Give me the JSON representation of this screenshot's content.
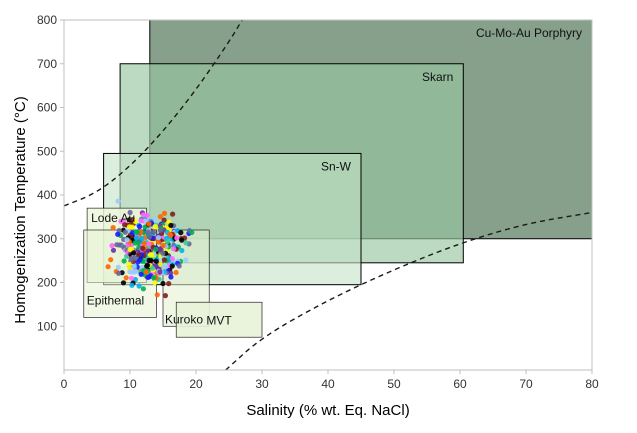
{
  "chart_data": {
    "type": "scatter",
    "title": "",
    "xlabel": "Salinity (% wt. Eq. NaCl)",
    "ylabel": "Homogenization Temperature (°C)",
    "xlim": [
      0,
      80
    ],
    "ylim": [
      0,
      800
    ],
    "x_ticks": [
      0,
      10,
      20,
      30,
      40,
      50,
      60,
      70,
      80
    ],
    "y_ticks": [
      100,
      200,
      300,
      400,
      500,
      600,
      700,
      800
    ],
    "grid": false,
    "regions": [
      {
        "name": "Cu-Mo-Au Porphyry",
        "x": [
          13,
          80
        ],
        "y": [
          300,
          800
        ],
        "fill": "#7f9b86",
        "fill_opacity": 0.95
      },
      {
        "name": "Skarn",
        "x": [
          8.5,
          60.5
        ],
        "y": [
          245,
          700
        ],
        "fill": "#98c4a2",
        "fill_opacity": 0.65
      },
      {
        "name": "Sn-W",
        "x": [
          6,
          45
        ],
        "y": [
          195,
          495
        ],
        "fill": "#c5e3c8",
        "fill_opacity": 0.6
      },
      {
        "name": "Lode Au",
        "x": [
          3.5,
          12.5
        ],
        "y": [
          200,
          370
        ],
        "fill": "#eef7dd",
        "fill_opacity": 0.85
      },
      {
        "name": "Epithermal",
        "x": [
          3,
          14
        ],
        "y": [
          120,
          320
        ],
        "fill": "#e6f2d2",
        "fill_opacity": 0.55
      },
      {
        "name": "Kuroko",
        "x": [
          15,
          22
        ],
        "y": [
          100,
          320
        ],
        "fill": "#e3f0d0",
        "fill_opacity": 0.55
      },
      {
        "name": "MVT",
        "x": [
          17,
          30
        ],
        "y": [
          75,
          155
        ],
        "fill": "#e8f2d8",
        "fill_opacity": 0.9
      }
    ],
    "curves": [
      {
        "name": "upper boundary",
        "style": "dashed",
        "points": [
          [
            0,
            375
          ],
          [
            5,
            405
          ],
          [
            10,
            465
          ],
          [
            15,
            545
          ],
          [
            20,
            640
          ],
          [
            25,
            750
          ],
          [
            27,
            800
          ]
        ]
      },
      {
        "name": "lower boundary",
        "style": "dashed",
        "points": [
          [
            24.5,
            0
          ],
          [
            30,
            75
          ],
          [
            40,
            160
          ],
          [
            50,
            230
          ],
          [
            60,
            290
          ],
          [
            70,
            335
          ],
          [
            80,
            360
          ]
        ]
      }
    ],
    "fluid_inclusion_colors": [
      "#1a1aff",
      "#00b050",
      "#7030a0",
      "#ff66ff",
      "#00b0f0",
      "#000000",
      "#7f1f1f",
      "#33cc99",
      "#ffff00",
      "#ff6600",
      "#99ccff",
      "#666699"
    ]
  }
}
